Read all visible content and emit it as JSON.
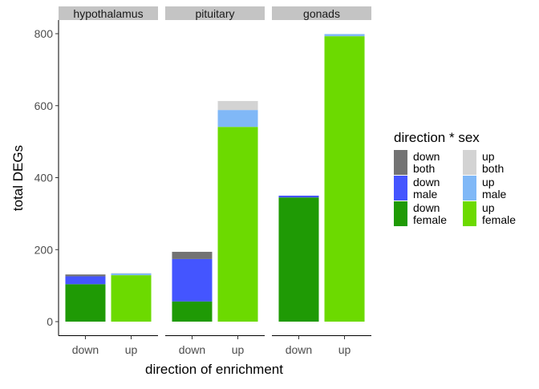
{
  "chart_data": {
    "type": "bar",
    "stacked": true,
    "facets": [
      "hypothalamus",
      "pituitary",
      "gonads"
    ],
    "categories": [
      "down",
      "up"
    ],
    "xlabel": "direction of enrichment",
    "ylabel": "total DEGs",
    "ylim": [
      0,
      820
    ],
    "yticks": [
      0,
      200,
      400,
      600,
      800
    ],
    "grid": false,
    "legend": {
      "title": "direction * sex",
      "placement": "right",
      "entries": [
        {
          "key": "down_both",
          "label": [
            "down",
            "both"
          ],
          "color": "#737373"
        },
        {
          "key": "down_male",
          "label": [
            "down",
            "male"
          ],
          "color": "#4455ff"
        },
        {
          "key": "down_female",
          "label": [
            "down",
            "female"
          ],
          "color": "#1f9a05"
        },
        {
          "key": "up_both",
          "label": [
            "up",
            "both"
          ],
          "color": "#d3d3d3"
        },
        {
          "key": "up_male",
          "label": [
            "up",
            "male"
          ],
          "color": "#80b8f7"
        },
        {
          "key": "up_female",
          "label": [
            "up",
            "female"
          ],
          "color": "#6cda00"
        }
      ]
    },
    "bars": [
      {
        "facet": "hypothalamus",
        "category": "down",
        "segments": [
          {
            "key": "down_female",
            "value": 104
          },
          {
            "key": "down_male",
            "value": 22
          },
          {
            "key": "down_both",
            "value": 5
          }
        ]
      },
      {
        "facet": "hypothalamus",
        "category": "up",
        "segments": [
          {
            "key": "up_female",
            "value": 129
          },
          {
            "key": "up_male",
            "value": 5
          },
          {
            "key": "up_both",
            "value": 1
          }
        ]
      },
      {
        "facet": "pituitary",
        "category": "down",
        "segments": [
          {
            "key": "down_female",
            "value": 56
          },
          {
            "key": "down_male",
            "value": 118
          },
          {
            "key": "down_both",
            "value": 20
          }
        ]
      },
      {
        "facet": "pituitary",
        "category": "up",
        "segments": [
          {
            "key": "up_female",
            "value": 541
          },
          {
            "key": "up_male",
            "value": 47
          },
          {
            "key": "up_both",
            "value": 25
          }
        ]
      },
      {
        "facet": "gonads",
        "category": "down",
        "segments": [
          {
            "key": "down_female",
            "value": 345
          },
          {
            "key": "down_male",
            "value": 5
          },
          {
            "key": "down_both",
            "value": 0
          }
        ]
      },
      {
        "facet": "gonads",
        "category": "up",
        "segments": [
          {
            "key": "up_female",
            "value": 793
          },
          {
            "key": "up_male",
            "value": 6
          },
          {
            "key": "up_both",
            "value": 0
          }
        ]
      }
    ]
  }
}
